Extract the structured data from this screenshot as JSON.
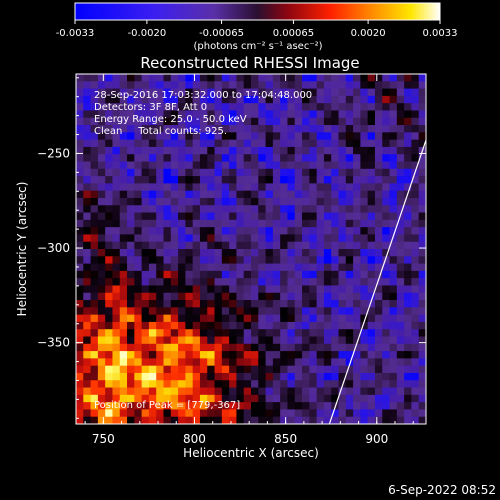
{
  "chart_data": {
    "type": "heatmap",
    "title": "Reconstructed RHESSI Image",
    "xlabel": "Heliocentric X (arcsec)",
    "ylabel": "Heliocentric Y (arcsec)",
    "xlim": [
      735,
      927
    ],
    "ylim": [
      -393,
      -208
    ],
    "x_ticks": [
      750,
      800,
      850,
      900
    ],
    "y_ticks": [
      -250,
      -300,
      -350
    ],
    "colorbar": {
      "ticks": [
        "-0.0033",
        "-0.0020",
        "-0.00065",
        "0.00065",
        "0.0020",
        "0.0033"
      ],
      "units": "(photons cm⁻² s⁻¹ asec⁻²)",
      "range": [
        -0.0033,
        0.0033
      ]
    },
    "annotations": {
      "time": "28-Sep-2016 17:03:32.000 to 17:04:48.000",
      "detectors": "Detectors: 3F 8F, Att 0",
      "energy": "Energy Range: 25.0 - 50.0 keV",
      "clean": "Clean     Total counts: 925.",
      "peak": "Position of Peak = [779,-367]"
    },
    "peak_position": [
      779,
      -367
    ],
    "limb_line": [
      [
        874,
        -393
      ],
      [
        927,
        -243
      ]
    ]
  },
  "footer": {
    "timestamp": "6-Sep-2022 08:52"
  },
  "colors": {
    "background": "#000000",
    "text": "#ffffff",
    "colormap": [
      "#0000ff",
      "#4a1fb5",
      "#5a2ca0",
      "#3b1f5a",
      "#000000",
      "#8a0a10",
      "#ff1a00",
      "#ff9a00",
      "#ffff00",
      "#ffffff"
    ]
  }
}
